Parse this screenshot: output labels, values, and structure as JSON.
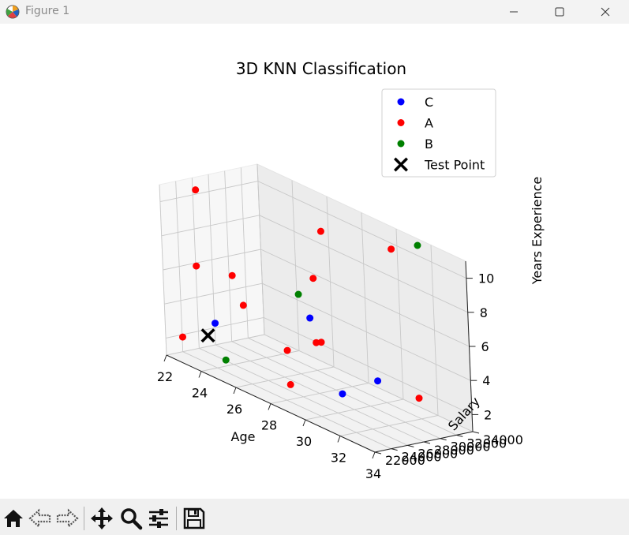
{
  "window": {
    "title": "Figure 1",
    "icons": [
      "matplotlib-icon",
      "minimize-icon",
      "maximize-icon",
      "close-icon"
    ]
  },
  "toolbar": {
    "buttons": [
      {
        "name": "home-button",
        "icon": "home-icon"
      },
      {
        "name": "back-button",
        "icon": "back-arrow-icon"
      },
      {
        "name": "forward-button",
        "icon": "forward-arrow-icon"
      },
      {
        "name": "pan-button",
        "icon": "move-icon"
      },
      {
        "name": "zoom-button",
        "icon": "magnifier-icon"
      },
      {
        "name": "configure-subplots-button",
        "icon": "sliders-icon"
      },
      {
        "name": "save-button",
        "icon": "floppy-disk-icon"
      }
    ]
  },
  "chart_data": {
    "type": "scatter",
    "projection": "3d",
    "title": "3D KNN Classification",
    "xlabel": "Age",
    "ylabel": "Salary",
    "zlabel": "Years Experience",
    "xlim": [
      22,
      34
    ],
    "ylim": [
      22000,
      34000
    ],
    "zlim": [
      1,
      11
    ],
    "xticks": [
      "22",
      "24",
      "26",
      "28",
      "30",
      "32",
      "34"
    ],
    "yticks": [
      "22000",
      "24000",
      "26000",
      "28000",
      "30000",
      "32000",
      "34000"
    ],
    "zticks": [
      "2",
      "4",
      "6",
      "8",
      "10"
    ],
    "grid": true,
    "legend_position": "top-right",
    "legend": [
      "C",
      "A",
      "B",
      "Test Point"
    ],
    "colors": {
      "C": "#0000ff",
      "A": "#ff0000",
      "B": "#008000",
      "Test Point": "#000000"
    },
    "series": [
      {
        "name": "C",
        "marker": "circle",
        "points": [
          {
            "x": 24.4,
            "y": 23100,
            "z": 3.9
          },
          {
            "x": 30.5,
            "y": 25600,
            "z": 2.4
          },
          {
            "x": 31.2,
            "y": 28500,
            "z": 3.2
          },
          {
            "x": 28.0,
            "y": 27200,
            "z": 5.5
          }
        ]
      },
      {
        "name": "A",
        "marker": "circle",
        "points": [
          {
            "x": 22.8,
            "y": 22400,
            "z": 2.4
          },
          {
            "x": 28.2,
            "y": 24100,
            "z": 2.0
          },
          {
            "x": 31.8,
            "y": 32200,
            "z": 2.1
          },
          {
            "x": 26.4,
            "y": 27600,
            "z": 2.8
          },
          {
            "x": 28.8,
            "y": 26800,
            "z": 4.5
          },
          {
            "x": 28.6,
            "y": 26600,
            "z": 4.4
          },
          {
            "x": 24.7,
            "y": 26000,
            "z": 4.8
          },
          {
            "x": 23.0,
            "y": 24000,
            "z": 6.5
          },
          {
            "x": 24.6,
            "y": 25000,
            "z": 6.6
          },
          {
            "x": 22.8,
            "y": 24700,
            "z": 10.8
          },
          {
            "x": 27.9,
            "y": 28000,
            "z": 7.7
          },
          {
            "x": 27.4,
            "y": 30200,
            "z": 10.0
          },
          {
            "x": 31.2,
            "y": 30800,
            "z": 10.7
          }
        ]
      },
      {
        "name": "B",
        "marker": "circle",
        "points": [
          {
            "x": 24.8,
            "y": 23400,
            "z": 1.9
          },
          {
            "x": 26.8,
            "y": 28400,
            "z": 6.2
          },
          {
            "x": 31.5,
            "y": 33400,
            "z": 10.8
          }
        ]
      },
      {
        "name": "Test Point",
        "marker": "x",
        "points": [
          {
            "x": 24,
            "y": 23000,
            "z": 3
          }
        ]
      }
    ]
  }
}
